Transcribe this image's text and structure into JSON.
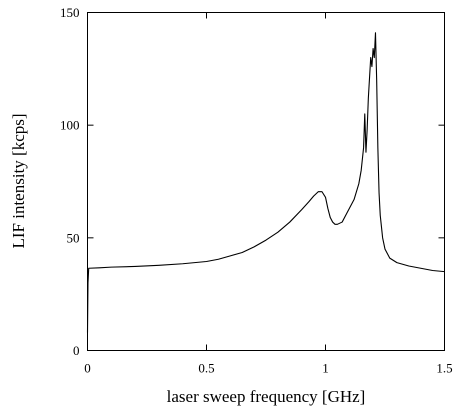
{
  "chart_data": {
    "type": "line",
    "title": "",
    "xlabel": "laser sweep frequency [GHz]",
    "ylabel": "LIF intensity [kcps]",
    "xlim": [
      0,
      1.5
    ],
    "ylim": [
      0,
      150
    ],
    "x_ticks": [
      0,
      0.5,
      1,
      1.5
    ],
    "x_tick_labels": [
      "0",
      "0.5",
      "1",
      "1.5"
    ],
    "y_ticks": [
      0,
      50,
      100,
      150
    ],
    "y_tick_labels": [
      "0",
      "50",
      "100",
      "150"
    ],
    "grid": false,
    "legend": "none",
    "series": [
      {
        "x": [
          0,
          0.002,
          0.005,
          0.05,
          0.1,
          0.2,
          0.3,
          0.4,
          0.5,
          0.55,
          0.6,
          0.65,
          0.7,
          0.75,
          0.8,
          0.85,
          0.9,
          0.93,
          0.95,
          0.97,
          0.985,
          1.0,
          1.01,
          1.02,
          1.03,
          1.04,
          1.05,
          1.07,
          1.09,
          1.1,
          1.12,
          1.14,
          1.15,
          1.16,
          1.165,
          1.17,
          1.175,
          1.18,
          1.19,
          1.195,
          1.2,
          1.205,
          1.21,
          1.215,
          1.22,
          1.225,
          1.23,
          1.24,
          1.25,
          1.27,
          1.3,
          1.35,
          1.4,
          1.45,
          1.5
        ],
        "y": [
          8,
          30,
          36.5,
          36.7,
          37,
          37.3,
          37.8,
          38.5,
          39.5,
          40.5,
          42,
          43.5,
          46,
          49,
          52.5,
          57,
          62.5,
          66,
          68.5,
          70.5,
          70.5,
          68,
          63,
          59,
          57,
          56,
          56,
          57,
          61,
          63,
          67,
          74,
          80,
          90,
          105,
          88,
          98,
          112,
          130,
          126,
          134,
          130,
          141,
          120,
          90,
          70,
          60,
          50,
          45,
          41,
          39,
          37.5,
          36.5,
          35.5,
          35
        ]
      }
    ]
  }
}
